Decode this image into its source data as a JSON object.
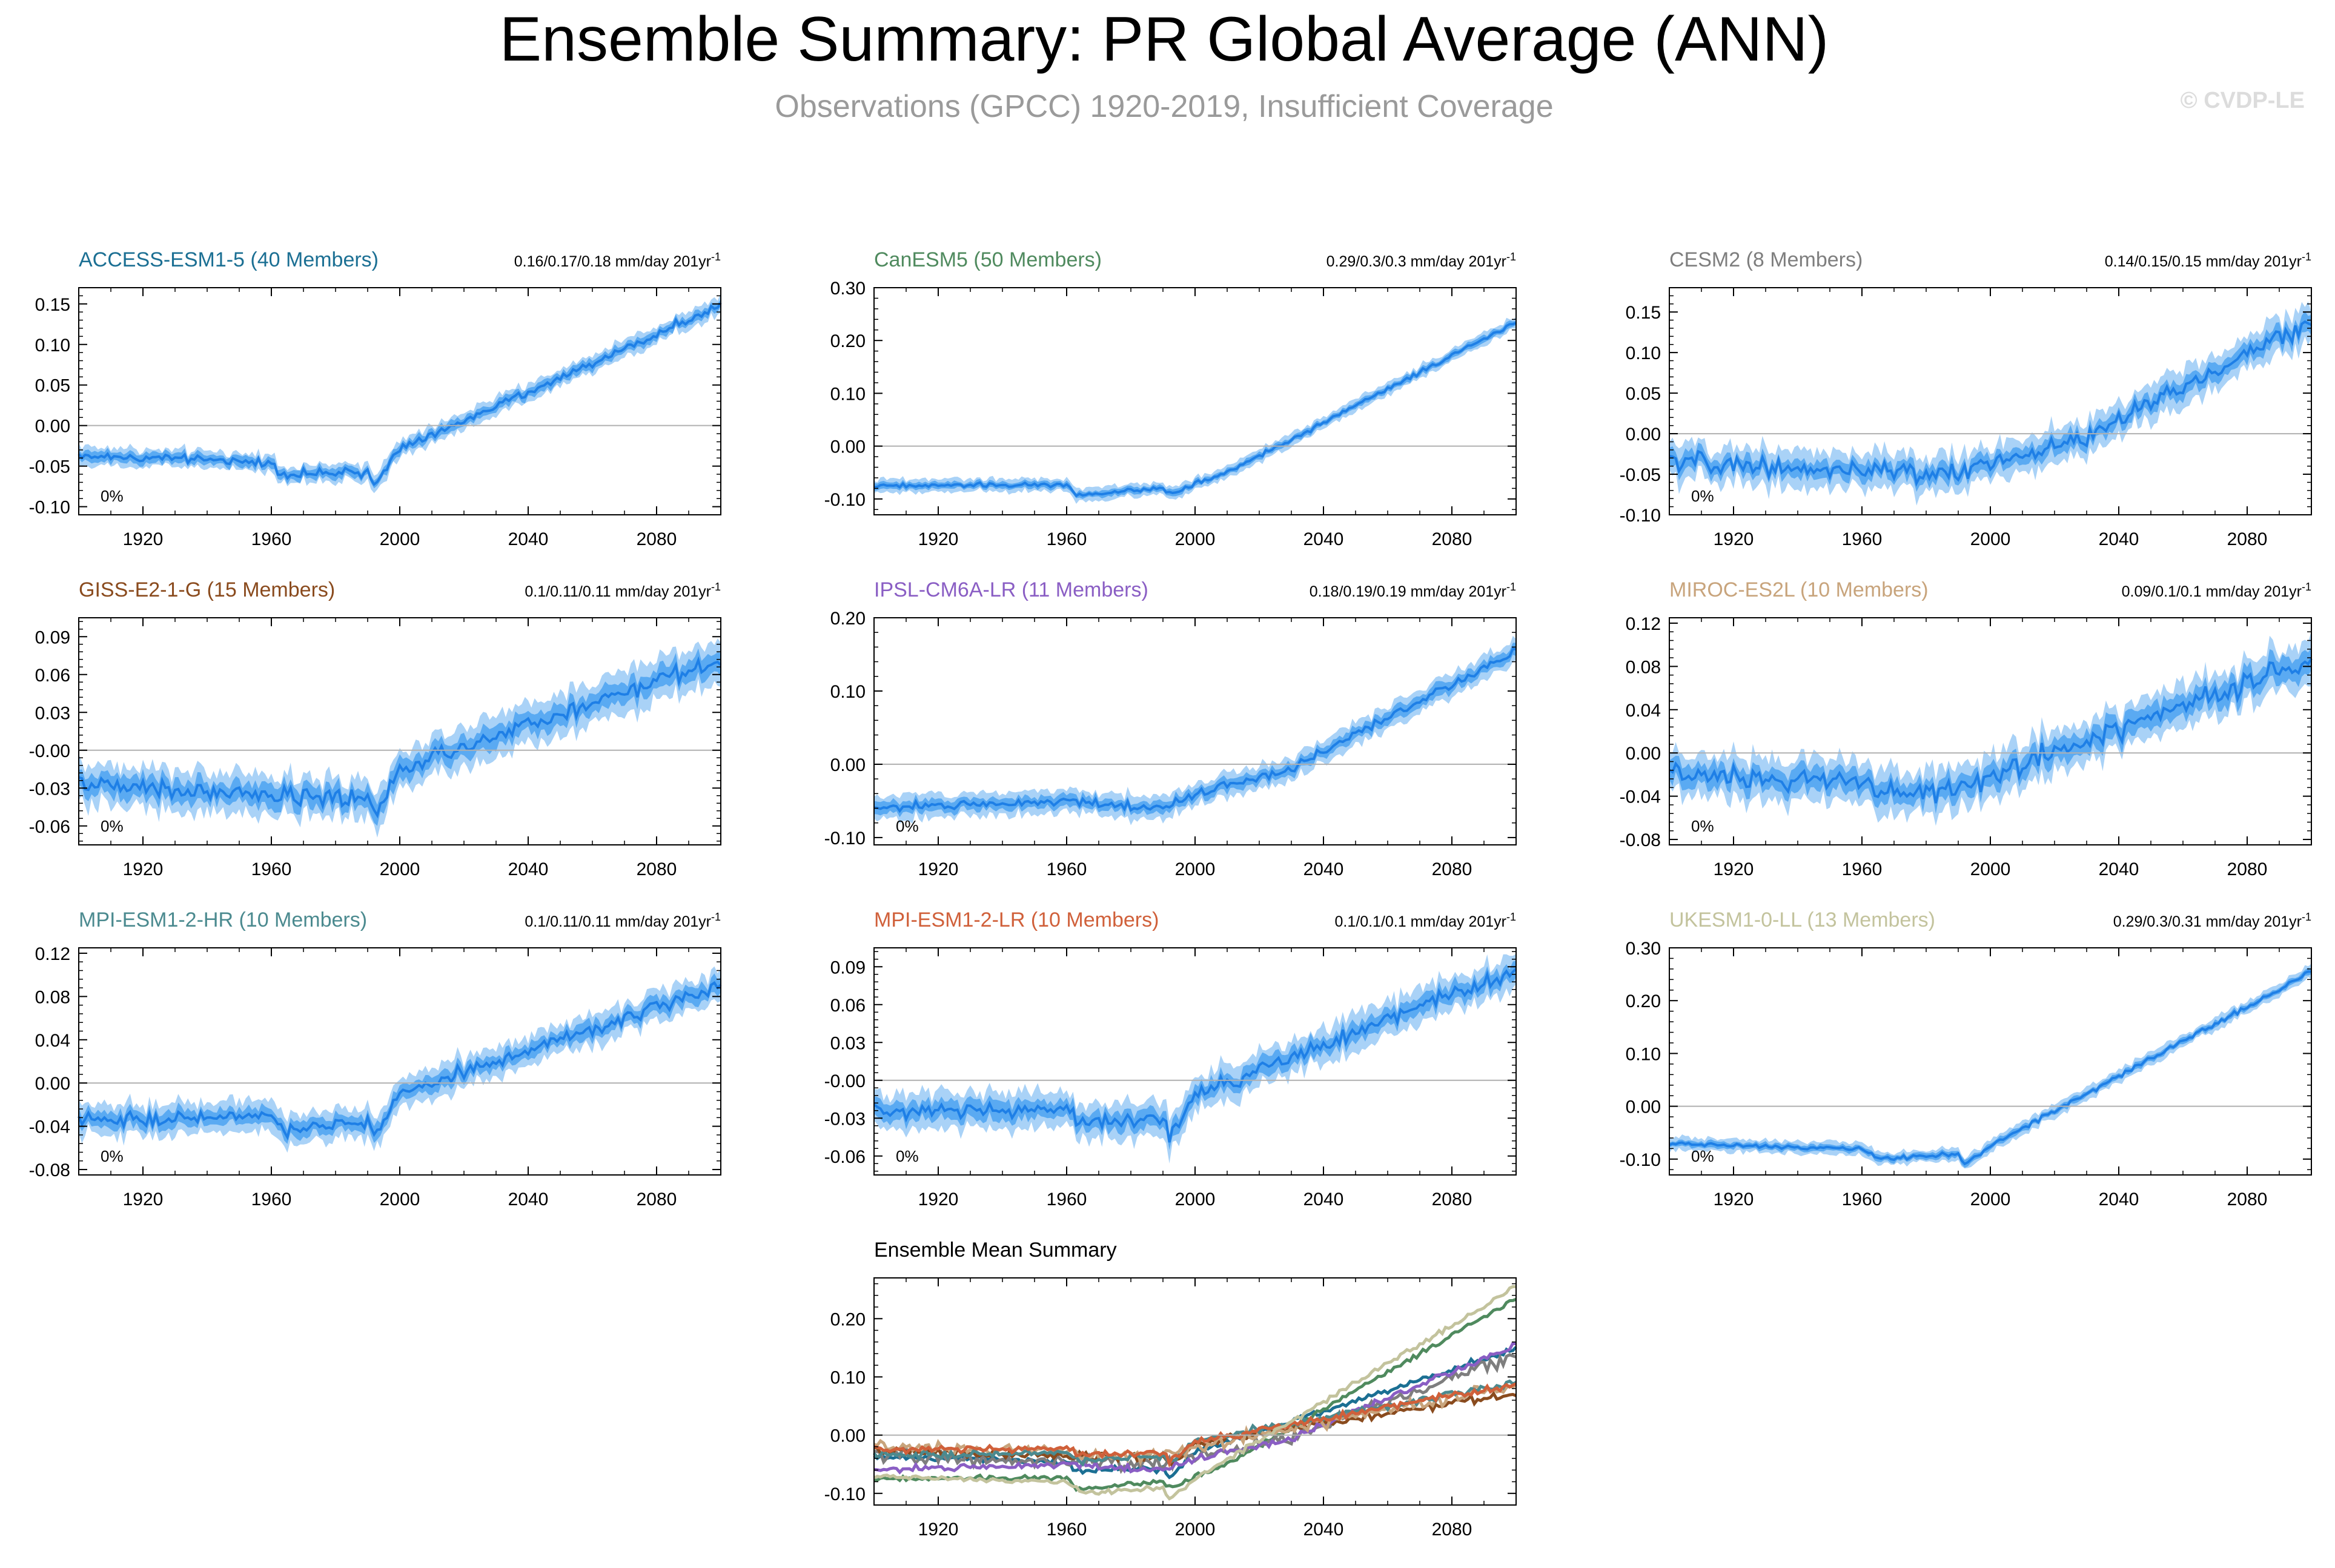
{
  "title": "Ensemble Summary: PR Global Average (ANN)",
  "subtitle": "Observations (GPCC) 1920-2019, Insufficient Coverage",
  "copyright": "© CVDP-LE",
  "units_label": "mm/day 201yr",
  "units_superscript": "-1",
  "colors": {
    "band_outer": "#a9d2f7",
    "band_inner": "#5aaaf2",
    "mean_line": "#1e7fe6",
    "zero_line": "#b0b0b0"
  },
  "chart_data": [
    {
      "type": "line",
      "name": "ACCESS-ESM1-5 (40 Members)",
      "title_color": "#1b6f93",
      "trend": "0.16/0.17/0.18",
      "pct_label": "0%",
      "ylim": [
        -0.11,
        0.17
      ],
      "yticks": [
        -0.1,
        -0.05,
        0.0,
        0.05,
        0.1,
        0.15
      ],
      "ytick_labels": [
        "-0.10",
        "-0.05",
        "0.00",
        "0.05",
        "0.10",
        "0.15"
      ],
      "xlim": [
        1900,
        2100
      ],
      "xticks": [
        1920,
        1960,
        2000,
        2040,
        2080
      ],
      "xtick_labels": [
        "1920",
        "1960",
        "2000",
        "2040",
        "2080"
      ],
      "x": [
        1900,
        1960,
        1963,
        1990,
        1992,
        2000,
        2100
      ],
      "values": [
        -0.036,
        -0.046,
        -0.06,
        -0.058,
        -0.072,
        -0.03,
        0.148
      ],
      "noise": 0.005,
      "spread": 0.006,
      "spread_outer": 0.011
    },
    {
      "type": "line",
      "name": "CanESM5 (50 Members)",
      "title_color": "#4f8a5e",
      "trend": "0.29/0.3/0.3",
      "pct_label": "",
      "ylim": [
        -0.13,
        0.3
      ],
      "yticks": [
        -0.1,
        0.0,
        0.1,
        0.2,
        0.3
      ],
      "ytick_labels": [
        "-0.10",
        "0.00",
        "0.10",
        "0.20",
        "0.30"
      ],
      "xlim": [
        1900,
        2100
      ],
      "xticks": [
        1920,
        1960,
        2000,
        2040,
        2080
      ],
      "xtick_labels": [
        "1920",
        "1960",
        "2000",
        "2040",
        "2080"
      ],
      "x": [
        1900,
        1960,
        1963,
        1990,
        1992,
        2010,
        2100
      ],
      "values": [
        -0.075,
        -0.073,
        -0.093,
        -0.08,
        -0.09,
        -0.05,
        0.235
      ],
      "noise": 0.004,
      "spread": 0.006,
      "spread_outer": 0.012
    },
    {
      "type": "line",
      "name": "CESM2 (8 Members)",
      "title_color": "#7e7e7e",
      "trend": "0.14/0.15/0.15",
      "pct_label": "0%",
      "ylim": [
        -0.1,
        0.18
      ],
      "yticks": [
        -0.1,
        -0.05,
        0.0,
        0.05,
        0.1,
        0.15
      ],
      "ytick_labels": [
        "-0.10",
        "-0.05",
        "0.00",
        "0.05",
        "0.10",
        "0.15"
      ],
      "xlim": [
        1900,
        2100
      ],
      "xticks": [
        1920,
        1960,
        2000,
        2040,
        2080
      ],
      "xtick_labels": [
        "1920",
        "1960",
        "2000",
        "2040",
        "2080"
      ],
      "x": [
        1900,
        1960,
        1990,
        2000,
        2030,
        2100
      ],
      "values": [
        -0.035,
        -0.045,
        -0.05,
        -0.035,
        -0.005,
        0.14
      ],
      "noise": 0.011,
      "spread": 0.01,
      "spread_outer": 0.022
    },
    {
      "type": "line",
      "name": "GISS-E2-1-G (15 Members)",
      "title_color": "#8a4b1e",
      "trend": "0.1/0.11/0.11",
      "pct_label": "0%",
      "ylim": [
        -0.075,
        0.105
      ],
      "yticks": [
        -0.06,
        -0.03,
        0.0,
        0.03,
        0.06,
        0.09
      ],
      "ytick_labels": [
        "-0.06",
        "-0.03",
        "-0.00",
        "0.03",
        "0.06",
        "0.09"
      ],
      "xlim": [
        1900,
        2100
      ],
      "xticks": [
        1920,
        1960,
        2000,
        2040,
        2080
      ],
      "xtick_labels": [
        "1920",
        "1960",
        "2000",
        "2040",
        "2080"
      ],
      "x": [
        1900,
        1960,
        1990,
        1992,
        2000,
        2100
      ],
      "values": [
        -0.028,
        -0.035,
        -0.04,
        -0.052,
        -0.015,
        0.072
      ],
      "noise": 0.007,
      "spread": 0.008,
      "spread_outer": 0.016
    },
    {
      "type": "line",
      "name": "IPSL-CM6A-LR (11 Members)",
      "title_color": "#8a5ec4",
      "trend": "0.18/0.19/0.19",
      "pct_label": "0%",
      "ylim": [
        -0.11,
        0.2
      ],
      "yticks": [
        -0.1,
        0.0,
        0.1,
        0.2
      ],
      "ytick_labels": [
        "-0.10",
        "0.00",
        "0.10",
        "0.20"
      ],
      "xlim": [
        1900,
        2100
      ],
      "xticks": [
        1920,
        1960,
        2000,
        2040,
        2080
      ],
      "xtick_labels": [
        "1920",
        "1960",
        "2000",
        "2040",
        "2080"
      ],
      "x": [
        1900,
        1960,
        1990,
        2000,
        2030,
        2100
      ],
      "values": [
        -0.06,
        -0.05,
        -0.06,
        -0.04,
        -0.005,
        0.155
      ],
      "noise": 0.006,
      "spread": 0.008,
      "spread_outer": 0.016
    },
    {
      "type": "line",
      "name": "MIROC-ES2L (10 Members)",
      "title_color": "#c8a47c",
      "trend": "0.09/0.1/0.1",
      "pct_label": "0%",
      "ylim": [
        -0.085,
        0.125
      ],
      "yticks": [
        -0.08,
        -0.04,
        0.0,
        0.04,
        0.08,
        0.12
      ],
      "ytick_labels": [
        "-0.08",
        "-0.04",
        "0.00",
        "0.04",
        "0.08",
        "0.12"
      ],
      "xlim": [
        1900,
        2100
      ],
      "xticks": [
        1920,
        1960,
        2000,
        2040,
        2080
      ],
      "xtick_labels": [
        "1920",
        "1960",
        "2000",
        "2040",
        "2080"
      ],
      "x": [
        1900,
        1960,
        1965,
        1990,
        2000,
        2100
      ],
      "values": [
        -0.02,
        -0.025,
        -0.035,
        -0.035,
        -0.02,
        0.085
      ],
      "noise": 0.01,
      "spread": 0.01,
      "spread_outer": 0.02
    },
    {
      "type": "line",
      "name": "MPI-ESM1-2-HR (10 Members)",
      "title_color": "#4b8a8f",
      "trend": "0.1/0.11/0.11",
      "pct_label": "0%",
      "ylim": [
        -0.085,
        0.125
      ],
      "yticks": [
        -0.08,
        -0.04,
        0.0,
        0.04,
        0.08,
        0.12
      ],
      "ytick_labels": [
        "-0.08",
        "-0.04",
        "0.00",
        "0.04",
        "0.08",
        "0.12"
      ],
      "xlim": [
        1900,
        2100
      ],
      "xticks": [
        1920,
        1960,
        2000,
        2040,
        2080
      ],
      "xtick_labels": [
        "1920",
        "1960",
        "2000",
        "2040",
        "2080"
      ],
      "x": [
        1900,
        1960,
        1965,
        1990,
        1992,
        2000,
        2100
      ],
      "values": [
        -0.035,
        -0.03,
        -0.045,
        -0.035,
        -0.05,
        -0.01,
        0.09
      ],
      "noise": 0.006,
      "spread": 0.007,
      "spread_outer": 0.014
    },
    {
      "type": "line",
      "name": "MPI-ESM1-2-LR (10 Members)",
      "title_color": "#d0603a",
      "trend": "0.1/0.1/0.1",
      "pct_label": "0%",
      "ylim": [
        -0.075,
        0.105
      ],
      "yticks": [
        -0.06,
        -0.03,
        0.0,
        0.03,
        0.06,
        0.09
      ],
      "ytick_labels": [
        "-0.06",
        "-0.03",
        "-0.00",
        "0.03",
        "0.06",
        "0.09"
      ],
      "xlim": [
        1900,
        2100
      ],
      "xticks": [
        1920,
        1960,
        2000,
        2040,
        2080
      ],
      "xtick_labels": [
        "1920",
        "1960",
        "2000",
        "2040",
        "2080"
      ],
      "x": [
        1900,
        1960,
        1965,
        1990,
        1992,
        2000,
        2100
      ],
      "values": [
        -0.025,
        -0.022,
        -0.035,
        -0.03,
        -0.045,
        -0.012,
        0.088
      ],
      "noise": 0.006,
      "spread": 0.007,
      "spread_outer": 0.014
    },
    {
      "type": "line",
      "name": "UKESM1-0-LL (13 Members)",
      "title_color": "#c3c39d",
      "trend": "0.29/0.3/0.31",
      "pct_label": "0%",
      "ylim": [
        -0.13,
        0.3
      ],
      "yticks": [
        -0.1,
        0.0,
        0.1,
        0.2,
        0.3
      ],
      "ytick_labels": [
        "-0.10",
        "0.00",
        "0.10",
        "0.20",
        "0.30"
      ],
      "xlim": [
        1900,
        2100
      ],
      "xticks": [
        1920,
        1960,
        2000,
        2040,
        2080
      ],
      "xtick_labels": [
        "1920",
        "1960",
        "2000",
        "2040",
        "2080"
      ],
      "x": [
        1900,
        1960,
        1965,
        1990,
        1992,
        2000,
        2100
      ],
      "values": [
        -0.07,
        -0.08,
        -0.1,
        -0.09,
        -0.11,
        -0.075,
        0.255
      ],
      "noise": 0.004,
      "spread": 0.006,
      "spread_outer": 0.012
    }
  ],
  "summary_chart": {
    "type": "line",
    "name": "Ensemble Mean Summary",
    "ylim": [
      -0.12,
      0.27
    ],
    "yticks": [
      -0.1,
      0.0,
      0.1,
      0.2
    ],
    "ytick_labels": [
      "-0.10",
      "0.00",
      "0.10",
      "0.20"
    ],
    "xlim": [
      1900,
      2100
    ],
    "xticks": [
      1920,
      1960,
      2000,
      2040,
      2080
    ],
    "xtick_labels": [
      "1920",
      "1960",
      "2000",
      "2040",
      "2080"
    ]
  }
}
